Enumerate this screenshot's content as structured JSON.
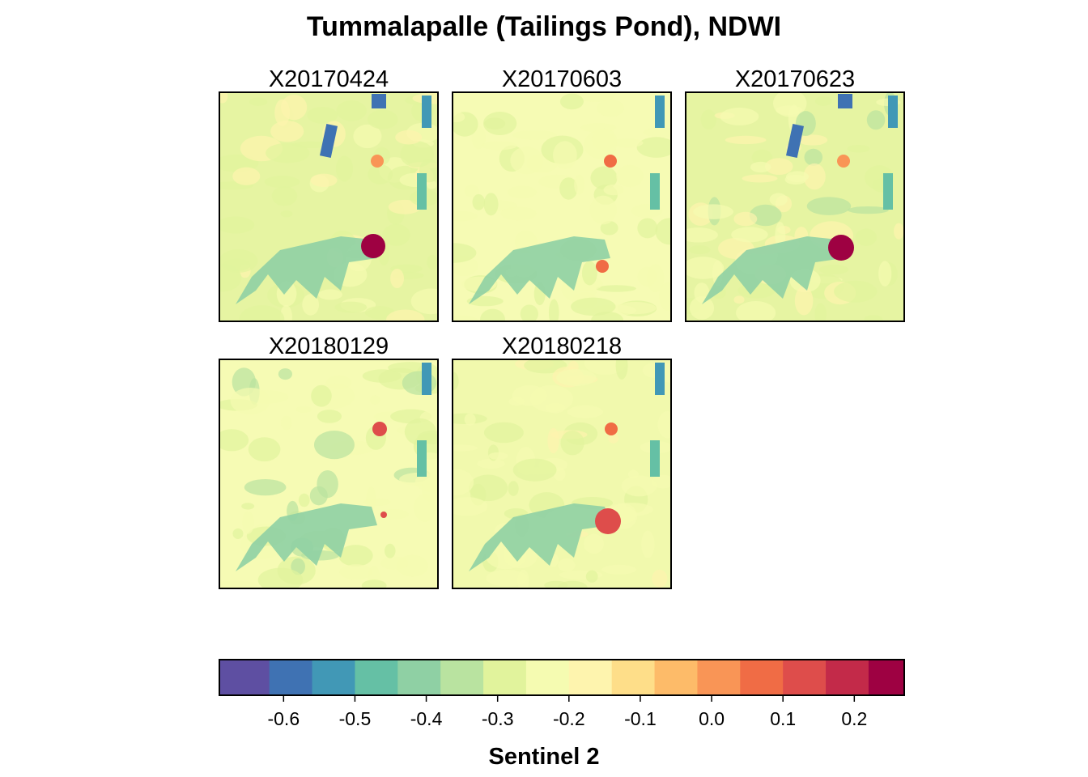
{
  "chart_data": {
    "type": "heatmap",
    "title": "Tummalapalle (Tailings Pond), NDWI",
    "panels": [
      "X20170424",
      "X20170603",
      "X20170623",
      "X20180129",
      "X20180218"
    ],
    "layout": {
      "columns": 3,
      "rows": 2
    },
    "colorbar": {
      "label": "Sentinel 2",
      "breaks": [
        -0.69,
        -0.62,
        -0.56,
        -0.5,
        -0.44,
        -0.38,
        -0.32,
        -0.26,
        -0.2,
        -0.14,
        -0.08,
        -0.02,
        0.04,
        0.1,
        0.16,
        0.22,
        0.27
      ],
      "colors": [
        "#5E4FA2",
        "#3F72B3",
        "#4198B6",
        "#65C0A5",
        "#8FD0A4",
        "#B9E3A0",
        "#E1F39C",
        "#F5FBB1",
        "#FEF4AE",
        "#FEDE89",
        "#FDBB69",
        "#F99556",
        "#F06C45",
        "#DE4D4B",
        "#C32A49",
        "#9E0142"
      ],
      "ticks": [
        -0.6,
        -0.5,
        -0.4,
        -0.3,
        -0.2,
        -0.1,
        0.0,
        0.1,
        0.2
      ],
      "tick_labels": [
        "-0.6",
        "-0.5",
        "-0.4",
        "-0.3",
        "-0.2",
        "-0.1",
        "0.0",
        "0.1",
        "0.2"
      ]
    }
  }
}
